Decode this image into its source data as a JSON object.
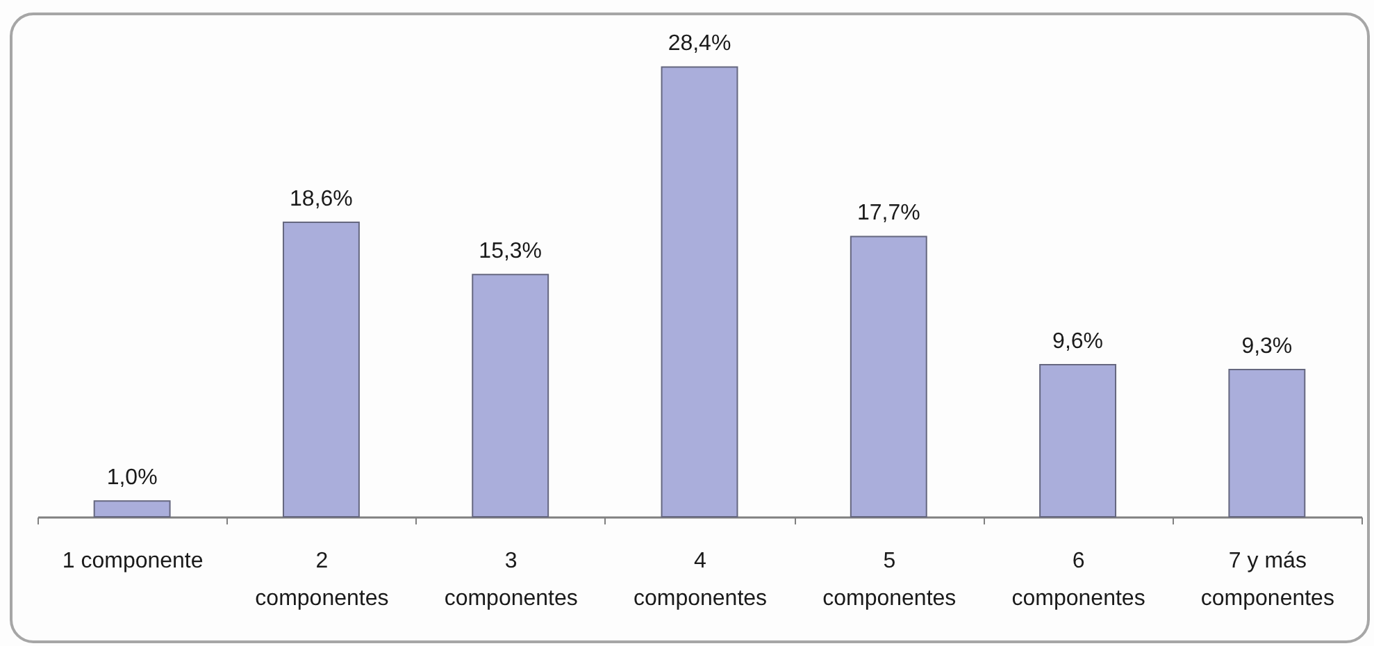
{
  "chart_data": {
    "type": "bar",
    "categories": [
      "1 componente",
      "2 componentes",
      "3 componentes",
      "4 componentes",
      "5 componentes",
      "6 componentes",
      "7 y más componentes"
    ],
    "values": [
      1.0,
      18.6,
      15.3,
      28.4,
      17.7,
      9.6,
      9.3
    ],
    "value_labels": [
      "1,0%",
      "18,6%",
      "15,3%",
      "28,4%",
      "17,7%",
      "9,6%",
      "9,3%"
    ],
    "color": "#aaaedb",
    "tick_labels": "x",
    "grid": false
  }
}
